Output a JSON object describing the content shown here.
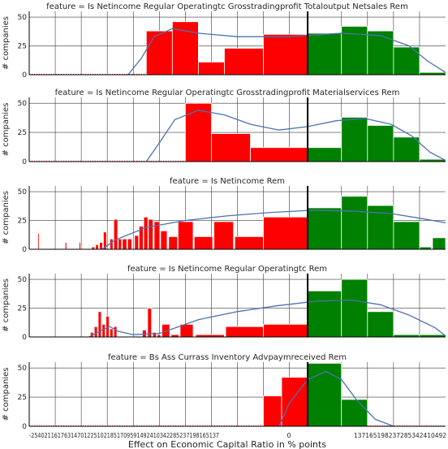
{
  "figure": {
    "xlabel": "Effect on Economic Capital Ratio in % points",
    "ylabel": "# companies",
    "colors": {
      "negative": "#ff0000",
      "positive": "#008000",
      "kde": "#4c72b0",
      "zero_line": "#000000",
      "grid": "#3a3a3a"
    },
    "x_tick_labels": [
      "-2540",
      "-2116",
      "-1763",
      "-1470",
      "-1225",
      "-1021",
      "-851",
      "-709",
      "-591",
      "-492",
      "-410",
      "-342",
      "-285",
      "-237",
      "-198",
      "-165",
      "-137",
      "0",
      "137",
      "165",
      "198",
      "237",
      "285",
      "342",
      "410",
      "492"
    ],
    "x_tick_label_strip": "-254021161763147012251021851709591492410342285237198165137",
    "x_tick_label_strip_right": "137165198237285342410492"
  },
  "chart_data": [
    {
      "type": "bar",
      "title": "feature = Is Netincome Regular Operatingtc Grosstradingprofit Totaloutput Netsales Rem",
      "y_tick_labels": [
        "0",
        "25",
        "50"
      ],
      "ylim": [
        0,
        55
      ],
      "bins": [
        {
          "x0": 0,
          "x1": 4.5,
          "value": 0
        },
        {
          "x0": 4.5,
          "x1": 5.5,
          "value": 38
        },
        {
          "x0": 5.5,
          "x1": 6.5,
          "value": 46
        },
        {
          "x0": 6.5,
          "x1": 7.5,
          "value": 11
        },
        {
          "x0": 7.5,
          "x1": 9,
          "value": 23
        },
        {
          "x0": 9,
          "x1": 10.7,
          "value": 35
        },
        {
          "x0": 10.7,
          "x1": 12,
          "value": 36
        },
        {
          "x0": 12,
          "x1": 13,
          "value": 42
        },
        {
          "x0": 13,
          "x1": 14,
          "value": 38
        },
        {
          "x0": 14,
          "x1": 15,
          "value": 24
        },
        {
          "x0": 15,
          "x1": 16,
          "value": 2
        }
      ],
      "kde": [
        [
          3.8,
          0
        ],
        [
          4.3,
          14
        ],
        [
          4.8,
          33
        ],
        [
          5.5,
          40
        ],
        [
          6.5,
          36
        ],
        [
          8,
          33
        ],
        [
          10,
          33
        ],
        [
          12,
          36
        ],
        [
          13.5,
          34
        ],
        [
          14.6,
          25
        ],
        [
          15.3,
          12
        ],
        [
          16,
          2
        ]
      ]
    },
    {
      "type": "bar",
      "title": "feature = Is Netincome Regular Operatingtc Grosstradingprofit Materialservices Rem",
      "y_tick_labels": [
        "0",
        "25",
        "50"
      ],
      "ylim": [
        0,
        55
      ],
      "bins": [
        {
          "x0": 0,
          "x1": 6,
          "value": 0
        },
        {
          "x0": 6,
          "x1": 7,
          "value": 50
        },
        {
          "x0": 7,
          "x1": 8.5,
          "value": 24
        },
        {
          "x0": 8.5,
          "x1": 10.7,
          "value": 12
        },
        {
          "x0": 10.7,
          "x1": 12,
          "value": 12
        },
        {
          "x0": 12,
          "x1": 13,
          "value": 38
        },
        {
          "x0": 13,
          "x1": 14,
          "value": 31
        },
        {
          "x0": 14,
          "x1": 15,
          "value": 21
        },
        {
          "x0": 15,
          "x1": 16,
          "value": 2
        }
      ],
      "kde": [
        [
          4.5,
          0
        ],
        [
          5,
          16
        ],
        [
          5.6,
          36
        ],
        [
          6.5,
          44
        ],
        [
          7.5,
          40
        ],
        [
          8.5,
          32
        ],
        [
          9.6,
          27
        ],
        [
          10.7,
          30
        ],
        [
          11.8,
          35
        ],
        [
          12.9,
          37
        ],
        [
          13.9,
          32
        ],
        [
          14.7,
          22
        ],
        [
          15.4,
          8
        ],
        [
          16,
          1
        ]
      ]
    },
    {
      "type": "bar",
      "title": "feature = Is Netincome Rem",
      "y_tick_labels": [
        "0",
        "25",
        "50"
      ],
      "ylim": [
        0,
        55
      ],
      "bins": [
        {
          "x0": 0.33,
          "x1": 0.38,
          "value": 14
        },
        {
          "x0": 1.38,
          "x1": 1.44,
          "value": 6
        },
        {
          "x0": 1.92,
          "x1": 1.98,
          "value": 6
        },
        {
          "x0": 2.4,
          "x1": 2.52,
          "value": 2
        },
        {
          "x0": 2.55,
          "x1": 2.66,
          "value": 4
        },
        {
          "x0": 2.7,
          "x1": 2.82,
          "value": 6
        },
        {
          "x0": 2.85,
          "x1": 2.97,
          "value": 15
        },
        {
          "x0": 3.1,
          "x1": 3.22,
          "value": 9
        },
        {
          "x0": 3.25,
          "x1": 3.4,
          "value": 26
        },
        {
          "x0": 3.42,
          "x1": 3.55,
          "value": 9
        },
        {
          "x0": 3.58,
          "x1": 3.75,
          "value": 9
        },
        {
          "x0": 3.78,
          "x1": 3.94,
          "value": 9
        },
        {
          "x0": 4.05,
          "x1": 4.2,
          "value": 12
        },
        {
          "x0": 4.22,
          "x1": 4.38,
          "value": 20
        },
        {
          "x0": 4.4,
          "x1": 4.56,
          "value": 28
        },
        {
          "x0": 4.58,
          "x1": 4.76,
          "value": 26
        },
        {
          "x0": 4.8,
          "x1": 5.02,
          "value": 24
        },
        {
          "x0": 5.05,
          "x1": 5.3,
          "value": 16
        },
        {
          "x0": 5.36,
          "x1": 5.7,
          "value": 11
        },
        {
          "x0": 5.72,
          "x1": 6.3,
          "value": 24
        },
        {
          "x0": 6.34,
          "x1": 7.05,
          "value": 11
        },
        {
          "x0": 7.1,
          "x1": 7.85,
          "value": 24
        },
        {
          "x0": 7.9,
          "x1": 9,
          "value": 11
        },
        {
          "x0": 9,
          "x1": 10.7,
          "value": 28
        },
        {
          "x0": 10.7,
          "x1": 12,
          "value": 36
        },
        {
          "x0": 12,
          "x1": 13,
          "value": 46
        },
        {
          "x0": 13,
          "x1": 14,
          "value": 38
        },
        {
          "x0": 14,
          "x1": 15,
          "value": 24
        },
        {
          "x0": 15,
          "x1": 15.45,
          "value": 2
        },
        {
          "x0": 15.5,
          "x1": 16,
          "value": 10
        }
      ],
      "kde": [
        [
          2.8,
          0
        ],
        [
          3.3,
          8
        ],
        [
          4.5,
          19
        ],
        [
          6,
          25
        ],
        [
          7.6,
          29
        ],
        [
          9.3,
          32
        ],
        [
          11,
          34
        ],
        [
          12.5,
          33
        ],
        [
          13.9,
          31
        ],
        [
          15,
          27
        ],
        [
          16,
          23
        ]
      ]
    },
    {
      "type": "bar",
      "title": "feature = Is Netincome Regular Operatingtc Rem",
      "y_tick_labels": [
        "0",
        "25",
        "50"
      ],
      "ylim": [
        0,
        55
      ],
      "bins": [
        {
          "x0": 2.35,
          "x1": 2.47,
          "value": 4
        },
        {
          "x0": 2.5,
          "x1": 2.62,
          "value": 9
        },
        {
          "x0": 2.65,
          "x1": 2.77,
          "value": 22
        },
        {
          "x0": 2.8,
          "x1": 2.92,
          "value": 11
        },
        {
          "x0": 2.95,
          "x1": 3.07,
          "value": 18
        },
        {
          "x0": 3.1,
          "x1": 3.22,
          "value": 7
        },
        {
          "x0": 3.25,
          "x1": 3.37,
          "value": 9
        },
        {
          "x0": 4.35,
          "x1": 4.5,
          "value": 6
        },
        {
          "x0": 4.55,
          "x1": 4.7,
          "value": 25
        },
        {
          "x0": 4.75,
          "x1": 4.88,
          "value": 4
        },
        {
          "x0": 4.92,
          "x1": 5.05,
          "value": 2
        },
        {
          "x0": 5.1,
          "x1": 5.4,
          "value": 11
        },
        {
          "x0": 5.45,
          "x1": 5.75,
          "value": 2
        },
        {
          "x0": 5.8,
          "x1": 6.3,
          "value": 11
        },
        {
          "x0": 6.4,
          "x1": 7.5,
          "value": 2
        },
        {
          "x0": 7.55,
          "x1": 9,
          "value": 9
        },
        {
          "x0": 9,
          "x1": 10.7,
          "value": 11
        },
        {
          "x0": 10.7,
          "x1": 12,
          "value": 40
        },
        {
          "x0": 12,
          "x1": 13,
          "value": 50
        },
        {
          "x0": 13,
          "x1": 14,
          "value": 22
        },
        {
          "x0": 14,
          "x1": 15,
          "value": 2
        },
        {
          "x0": 15,
          "x1": 16,
          "value": 2
        }
      ],
      "kde": [
        [
          2.3,
          0
        ],
        [
          2.8,
          6
        ],
        [
          3.1,
          9
        ],
        [
          3.4,
          5
        ],
        [
          4,
          2
        ],
        [
          5,
          3
        ],
        [
          6.5,
          15
        ],
        [
          8,
          22
        ],
        [
          9.5,
          27
        ],
        [
          11,
          31
        ],
        [
          12.4,
          32
        ],
        [
          13.5,
          28
        ],
        [
          14.6,
          19
        ],
        [
          15.6,
          8
        ],
        [
          16,
          1
        ]
      ]
    },
    {
      "type": "bar",
      "title": "feature = Bs Ass Currass Inventory Advpaymreceived Rem",
      "y_tick_labels": [
        "0",
        "25",
        "50"
      ],
      "ylim": [
        0,
        55
      ],
      "bins": [
        {
          "x0": 0,
          "x1": 9,
          "value": 0
        },
        {
          "x0": 9,
          "x1": 9.7,
          "value": 26
        },
        {
          "x0": 9.7,
          "x1": 10.7,
          "value": 42
        },
        {
          "x0": 10.7,
          "x1": 12,
          "value": 54
        },
        {
          "x0": 12,
          "x1": 13,
          "value": 23
        },
        {
          "x0": 13,
          "x1": 16,
          "value": 0
        }
      ],
      "kde": [
        [
          9.6,
          0
        ],
        [
          10,
          20
        ],
        [
          10.7,
          40
        ],
        [
          11.4,
          47
        ],
        [
          12,
          40
        ],
        [
          12.6,
          22
        ],
        [
          13.3,
          6
        ],
        [
          14,
          0
        ]
      ]
    }
  ]
}
